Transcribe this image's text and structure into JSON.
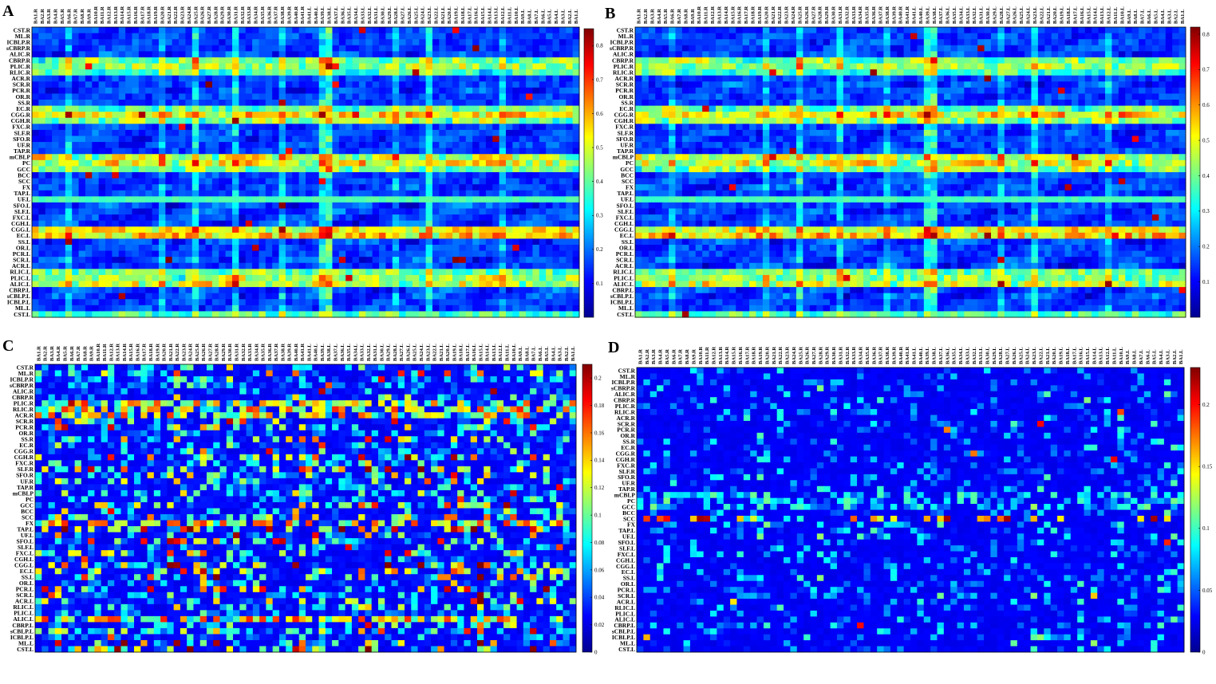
{
  "figure": {
    "description_labels": [
      "A",
      "B",
      "C",
      "D"
    ]
  },
  "chart_data": [
    {
      "type": "heatmap",
      "panel": "A",
      "rows": [
        "CST.R",
        "ML.R",
        "ICBLP.R",
        "sCBRP.R",
        "ALIC.R",
        "CBRP.R",
        "PLIC.R",
        "RLIC.R",
        "ACR.R",
        "SCR.R",
        "PCR.R",
        "OR.R",
        "SS.R",
        "EC.R",
        "CGG.R",
        "CGH.R",
        "FXC.R",
        "SLF.R",
        "SFO.R",
        "UF.R",
        "TAP.R",
        "mCBLP",
        "PC",
        "GCC",
        "BCC",
        "SCC",
        "FX",
        "TAP.L",
        "UF.L",
        "SFO.L",
        "SLF.L",
        "FXC.L",
        "CGH.L",
        "CGG.L",
        "EC.L",
        "SS.L",
        "OR.L",
        "PCR.L",
        "SCR.L",
        "ACR.L",
        "RLIC.L",
        "PLIC.L",
        "ALIC.L",
        "CBRP.L",
        "sCBLP.L",
        "ICBLP.L",
        "ML.L",
        "CST.L"
      ],
      "columns": [
        "BA1.R",
        "BA2.R",
        "BA3.R",
        "BA4.R",
        "BA5.R",
        "BA6.R",
        "BA7.R",
        "BA8.R",
        "BA9.R",
        "BA10.R",
        "BA11.R",
        "BA12.R",
        "BA13.R",
        "BA14.R",
        "BA15.R",
        "BA16.R",
        "BA17.R",
        "BA18.R",
        "BA19.R",
        "BA20.R",
        "BA21.R",
        "BA22.R",
        "BA23.R",
        "BA24.R",
        "BA25.R",
        "BA26.R",
        "BA27.R",
        "BA28.R",
        "BA29.R",
        "BA30.R",
        "BA31.R",
        "BA32.R",
        "BA33.R",
        "BA34.R",
        "BA35.R",
        "BA36.R",
        "BA37.R",
        "BA38.R",
        "BA39.R",
        "BA40.R",
        "BA41.R",
        "BA41.L",
        "BA40.L",
        "BA39.L",
        "BA38.L",
        "BA37.L",
        "BA36.L",
        "BA35.L",
        "BA34.L",
        "BA33.L",
        "BA32.L",
        "BA31.L",
        "BA30.L",
        "BA29.L",
        "BA28.L",
        "BA27.L",
        "BA26.L",
        "BA25.L",
        "BA24.L",
        "BA23.L",
        "BA22.L",
        "BA21.L",
        "BA20.L",
        "BA19.L",
        "BA18.L",
        "BA17.L",
        "BA16.L",
        "BA15.L",
        "BA14.L",
        "BA13.L",
        "BA12.L",
        "BA11.L",
        "BA10.L",
        "BA9.L",
        "BA8.L",
        "BA7.L",
        "BA6.L",
        "BA5.L",
        "BA4.L",
        "BA3.L",
        "BA2.L",
        "BA1.L"
      ],
      "colorbar": {
        "min": 0,
        "max": 0.85,
        "ticks": [
          "0.1",
          "0.2",
          "0.3",
          "0.4",
          "0.5",
          "0.6",
          "0.7",
          "0.8"
        ],
        "tick_values": [
          0.1,
          0.2,
          0.3,
          0.4,
          0.5,
          0.6,
          0.7,
          0.8
        ],
        "colormap": "jet"
      },
      "values": "approximate dense connectivity matrix (48 x 82), values ~0.0–0.85; highest near EC.R / SS.L rows"
    },
    {
      "type": "heatmap",
      "panel": "B",
      "rows": [
        "CST.R",
        "ML.R",
        "ICBLP.R",
        "sCBRP.R",
        "ALIC.R",
        "CBRP.R",
        "PLIC.R",
        "RLIC.R",
        "ACR.R",
        "SCR.R",
        "PCR.R",
        "OR.R",
        "SS.R",
        "EC.R",
        "CGG.R",
        "CGH.R",
        "FXC.R",
        "SLF.R",
        "SFO.R",
        "UF.R",
        "TAP.R",
        "mCBLP",
        "PC",
        "GCC",
        "BCC",
        "SCC",
        "FX",
        "TAP.L",
        "UF.L",
        "SFO.L",
        "SLF.L",
        "FXC.L",
        "CGH.L",
        "CGG.L",
        "EC.L",
        "SS.L",
        "OR.L",
        "PCR.L",
        "SCR.L",
        "ACR.L",
        "RLIC.L",
        "PLIC.L",
        "ALIC.L",
        "CBRP.L",
        "sCBLP.L",
        "ICBLP.L",
        "ML.L",
        "CST.L"
      ],
      "columns": [
        "BA1.R",
        "BA2.R",
        "BA3.R",
        "BA4.R",
        "BA5.R",
        "BA6.R",
        "BA7.R",
        "BA8.R",
        "BA9.R",
        "BA10.R",
        "BA11.R",
        "BA12.R",
        "BA13.R",
        "BA14.R",
        "BA15.R",
        "BA16.R",
        "BA17.R",
        "BA18.R",
        "BA19.R",
        "BA20.R",
        "BA21.R",
        "BA22.R",
        "BA23.R",
        "BA24.R",
        "BA25.R",
        "BA26.R",
        "BA27.R",
        "BA28.R",
        "BA29.R",
        "BA30.R",
        "BA31.R",
        "BA32.R",
        "BA33.R",
        "BA34.R",
        "BA35.R",
        "BA36.R",
        "BA37.R",
        "BA38.R",
        "BA39.R",
        "BA40.R",
        "BA41.R",
        "BA41.L",
        "BA40.L",
        "BA39.L",
        "BA38.L",
        "BA37.L",
        "BA36.L",
        "BA35.L",
        "BA34.L",
        "BA33.L",
        "BA32.L",
        "BA31.L",
        "BA30.L",
        "BA29.L",
        "BA28.L",
        "BA27.L",
        "BA26.L",
        "BA25.L",
        "BA24.L",
        "BA23.L",
        "BA22.L",
        "BA21.L",
        "BA20.L",
        "BA19.L",
        "BA18.L",
        "BA17.L",
        "BA16.L",
        "BA15.L",
        "BA14.L",
        "BA13.L",
        "BA12.L",
        "BA11.L",
        "BA10.L",
        "BA9.L",
        "BA8.L",
        "BA7.L",
        "BA6.L",
        "BA5.L",
        "BA4.L",
        "BA3.L",
        "BA2.L",
        "BA1.L"
      ],
      "colorbar": {
        "min": 0,
        "max": 0.82,
        "ticks": [
          "0.1",
          "0.2",
          "0.3",
          "0.4",
          "0.5",
          "0.6",
          "0.7",
          "0.8"
        ],
        "tick_values": [
          0.1,
          0.2,
          0.3,
          0.4,
          0.5,
          0.6,
          0.7,
          0.8
        ],
        "colormap": "jet"
      },
      "values": "approximate dense connectivity matrix (48 x 82), values ~0.0–0.82"
    },
    {
      "type": "heatmap",
      "panel": "C",
      "rows": [
        "CST.R",
        "ML.R",
        "ICBLP.R",
        "sCBRP.R",
        "ALIC.R",
        "CBRP.R",
        "PLIC.R",
        "RLIC.R",
        "ACR.R",
        "SCR.R",
        "PCR.R",
        "OR.R",
        "SS.R",
        "EC.R",
        "CGG.R",
        "CGH.R",
        "FXC.R",
        "SLF.R",
        "SFO.R",
        "UF.R",
        "TAP.R",
        "mCBLP",
        "PC",
        "GCC",
        "BCC",
        "SCC",
        "FX",
        "TAP.L",
        "UF.L",
        "SFO.L",
        "SLF.L",
        "FXC.L",
        "CGH.L",
        "CGG.L",
        "EC.L",
        "SS.L",
        "OR.L",
        "PCR.L",
        "SCR.L",
        "ACR.L",
        "RLIC.L",
        "PLIC.L",
        "ALIC.L",
        "CBRP.L",
        "sCBLP.L",
        "ICBLP.L",
        "ML.L",
        "CST.L"
      ],
      "columns": [
        "BA1.R",
        "BA2.R",
        "BA3.R",
        "BA4.R",
        "BA5.R",
        "BA6.R",
        "BA7.R",
        "BA8.R",
        "BA9.R",
        "BA10.R",
        "BA11.R",
        "BA12.R",
        "BA13.R",
        "BA14.R",
        "BA15.R",
        "BA16.R",
        "BA17.R",
        "BA18.R",
        "BA19.R",
        "BA20.R",
        "BA21.R",
        "BA22.R",
        "BA23.R",
        "BA24.R",
        "BA25.R",
        "BA26.R",
        "BA27.R",
        "BA28.R",
        "BA29.R",
        "BA30.R",
        "BA31.R",
        "BA32.R",
        "BA33.R",
        "BA34.R",
        "BA35.R",
        "BA36.R",
        "BA37.R",
        "BA38.R",
        "BA39.R",
        "BA40.R",
        "BA41.R",
        "BA41.L",
        "BA40.L",
        "BA39.L",
        "BA38.L",
        "BA37.L",
        "BA36.L",
        "BA35.L",
        "BA34.L",
        "BA33.L",
        "BA32.L",
        "BA31.L",
        "BA30.L",
        "BA29.L",
        "BA28.L",
        "BA27.L",
        "BA26.L",
        "BA25.L",
        "BA24.L",
        "BA23.L",
        "BA22.L",
        "BA21.L",
        "BA20.L",
        "BA19.L",
        "BA18.L",
        "BA17.L",
        "BA16.L",
        "BA15.L",
        "BA14.L",
        "BA13.L",
        "BA12.L",
        "BA11.L",
        "BA10.L",
        "BA9.L",
        "BA8.L",
        "BA7.L",
        "BA6.L",
        "BA5.L",
        "BA4.L",
        "BA3.L",
        "BA2.L",
        "BA1.L"
      ],
      "colorbar": {
        "min": 0,
        "max": 0.21,
        "ticks": [
          "0",
          "0.02",
          "0.04",
          "0.06",
          "0.08",
          "0.1",
          "0.12",
          "0.14",
          "0.16",
          "0.18",
          "0.2"
        ],
        "tick_values": [
          0,
          0.02,
          0.04,
          0.06,
          0.08,
          0.1,
          0.12,
          0.14,
          0.16,
          0.18,
          0.2
        ],
        "colormap": "jet"
      },
      "values": "approximate sparse difference matrix (48 x 82), values ~0.0–0.21"
    },
    {
      "type": "heatmap",
      "panel": "D",
      "rows": [
        "CST.R",
        "ML.R",
        "ICBLP.R",
        "sCBRP.R",
        "ALIC.R",
        "CBRP.R",
        "PLIC.R",
        "RLIC.R",
        "ACR.R",
        "SCR.R",
        "PCR.R",
        "OR.R",
        "SS.R",
        "EC.R",
        "CGG.R",
        "CGH.R",
        "FXC.R",
        "SLF.R",
        "SFO.R",
        "UF.R",
        "TAP.R",
        "mCBLP",
        "PC",
        "GCC",
        "BCC",
        "SCC",
        "FX",
        "TAP.L",
        "UF.L",
        "SFO.L",
        "SLF.L",
        "FXC.L",
        "CGH.L",
        "CGG.L",
        "EC.L",
        "SS.L",
        "OR.L",
        "PCR.L",
        "SCR.L",
        "ACR.L",
        "RLIC.L",
        "PLIC.L",
        "ALIC.L",
        "CBRP.L",
        "sCBLP.L",
        "ICBLP.L",
        "ML.L",
        "CST.L"
      ],
      "columns": [
        "BA1.R",
        "BA2.R",
        "BA3.R",
        "BA4.R",
        "BA5.R",
        "BA6.R",
        "BA7.R",
        "BA8.R",
        "BA9.R",
        "BA10.R",
        "BA11.R",
        "BA12.R",
        "BA13.R",
        "BA14.R",
        "BA15.R",
        "BA16.R",
        "BA17.R",
        "BA18.R",
        "BA19.R",
        "BA20.R",
        "BA21.R",
        "BA22.R",
        "BA23.R",
        "BA24.R",
        "BA25.R",
        "BA26.R",
        "BA27.R",
        "BA28.R",
        "BA29.R",
        "BA30.R",
        "BA31.R",
        "BA32.R",
        "BA33.R",
        "BA34.R",
        "BA35.R",
        "BA36.R",
        "BA37.R",
        "BA38.R",
        "BA39.R",
        "BA40.R",
        "BA41.R",
        "BA41.L",
        "BA40.L",
        "BA39.L",
        "BA38.L",
        "BA37.L",
        "BA36.L",
        "BA35.L",
        "BA34.L",
        "BA33.L",
        "BA32.L",
        "BA31.L",
        "BA30.L",
        "BA29.L",
        "BA28.L",
        "BA27.L",
        "BA26.L",
        "BA25.L",
        "BA24.L",
        "BA23.L",
        "BA22.L",
        "BA21.L",
        "BA20.L",
        "BA19.L",
        "BA18.L",
        "BA17.L",
        "BA16.L",
        "BA15.L",
        "BA14.L",
        "BA13.L",
        "BA12.L",
        "BA11.L",
        "BA10.L",
        "BA9.L",
        "BA8.L",
        "BA7.L",
        "BA6.L",
        "BA5.L",
        "BA4.L",
        "BA3.L",
        "BA2.L",
        "BA1.L"
      ],
      "colorbar": {
        "min": 0,
        "max": 0.23,
        "ticks": [
          "0",
          "0.05",
          "0.1",
          "0.15",
          "0.2"
        ],
        "tick_values": [
          0,
          0.05,
          0.1,
          0.15,
          0.2
        ],
        "colormap": "jet"
      },
      "values": "approximate very sparse difference matrix (48 x 82), values ~0.0–0.23; peaks on SCC row"
    }
  ]
}
